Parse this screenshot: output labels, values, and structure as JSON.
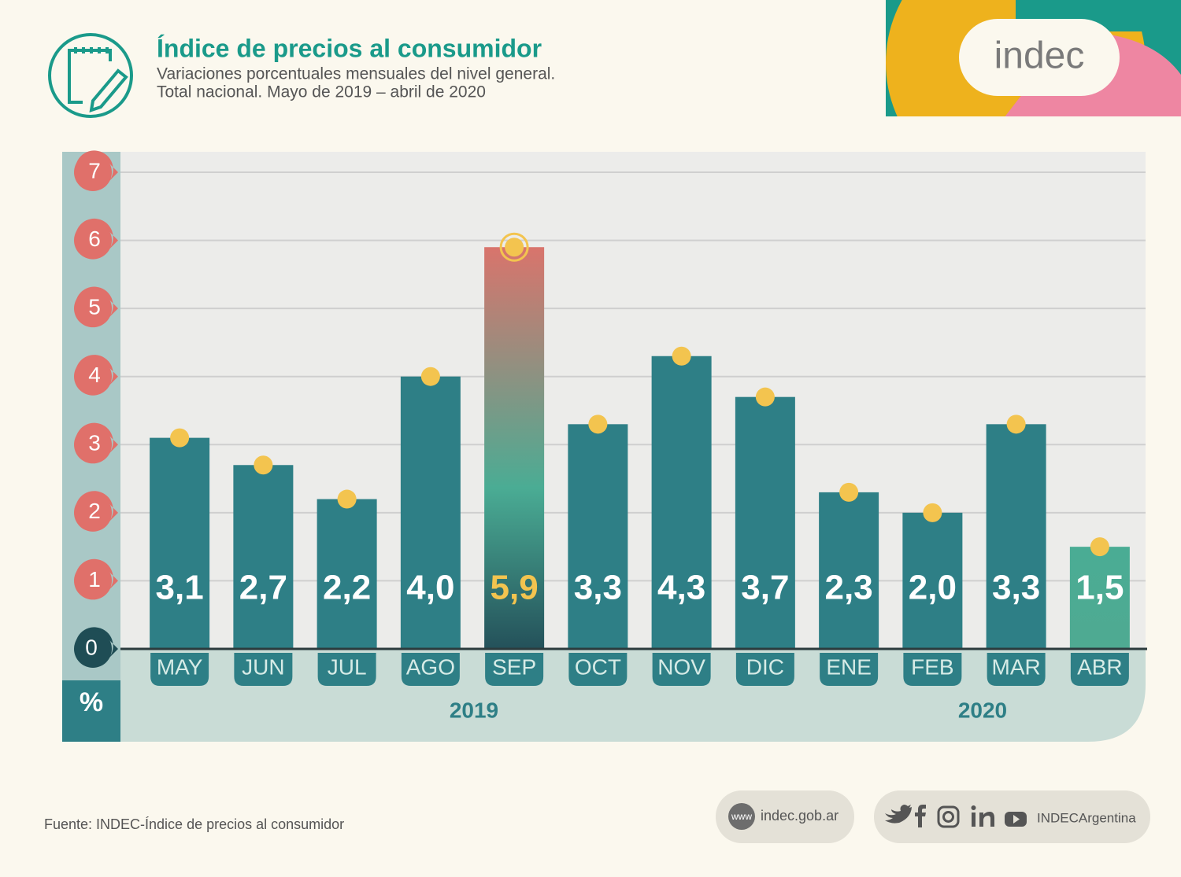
{
  "header": {
    "logo": "indec"
  },
  "chart_data": {
    "type": "bar",
    "title": "Índice de precios al consumidor",
    "subtitle": [
      "Variaciones porcentuales mensuales del nivel general.",
      "Total nacional. Mayo de 2019 – abril de 2020"
    ],
    "y_label": "%",
    "years": [
      "2019",
      "2020"
    ],
    "categories": [
      "MAY",
      "JUN",
      "JUL",
      "AGO",
      "SEP",
      "OCT",
      "NOV",
      "DIC",
      "ENE",
      "FEB",
      "MAR",
      "ABR"
    ],
    "values": [
      3.1,
      2.7,
      2.2,
      4.0,
      5.9,
      3.3,
      4.3,
      3.7,
      2.3,
      2.0,
      3.3,
      1.5
    ],
    "value_labels": [
      "3,1",
      "2,7",
      "2,2",
      "4,0",
      "5,9",
      "3,3",
      "4,3",
      "3,7",
      "2,3",
      "2,0",
      "3,3",
      "1,5"
    ],
    "colors": [
      "#2e7f86",
      "#2e7f86",
      "#2e7f86",
      "#2e7f86",
      "#d9746c",
      "#2e7f86",
      "#2e7f86",
      "#2e7f86",
      "#2e7f86",
      "#2e7f86",
      "#2e7f86",
      "#4faa92"
    ],
    "label_colors": [
      "#ffffff",
      "#ffffff",
      "#ffffff",
      "#ffffff",
      "#f3c44f",
      "#ffffff",
      "#ffffff",
      "#ffffff",
      "#ffffff",
      "#ffffff",
      "#ffffff",
      "#ffffff"
    ],
    "ylim": [
      0,
      7
    ],
    "yticks": [
      0,
      1,
      2,
      3,
      4,
      5,
      6,
      7
    ],
    "grid": true
  },
  "footer": {
    "source": "Fuente: INDEC-Índice de precios al consumidor",
    "www": "www",
    "website": "indec.gob.ar",
    "social": "INDECArgentina"
  }
}
